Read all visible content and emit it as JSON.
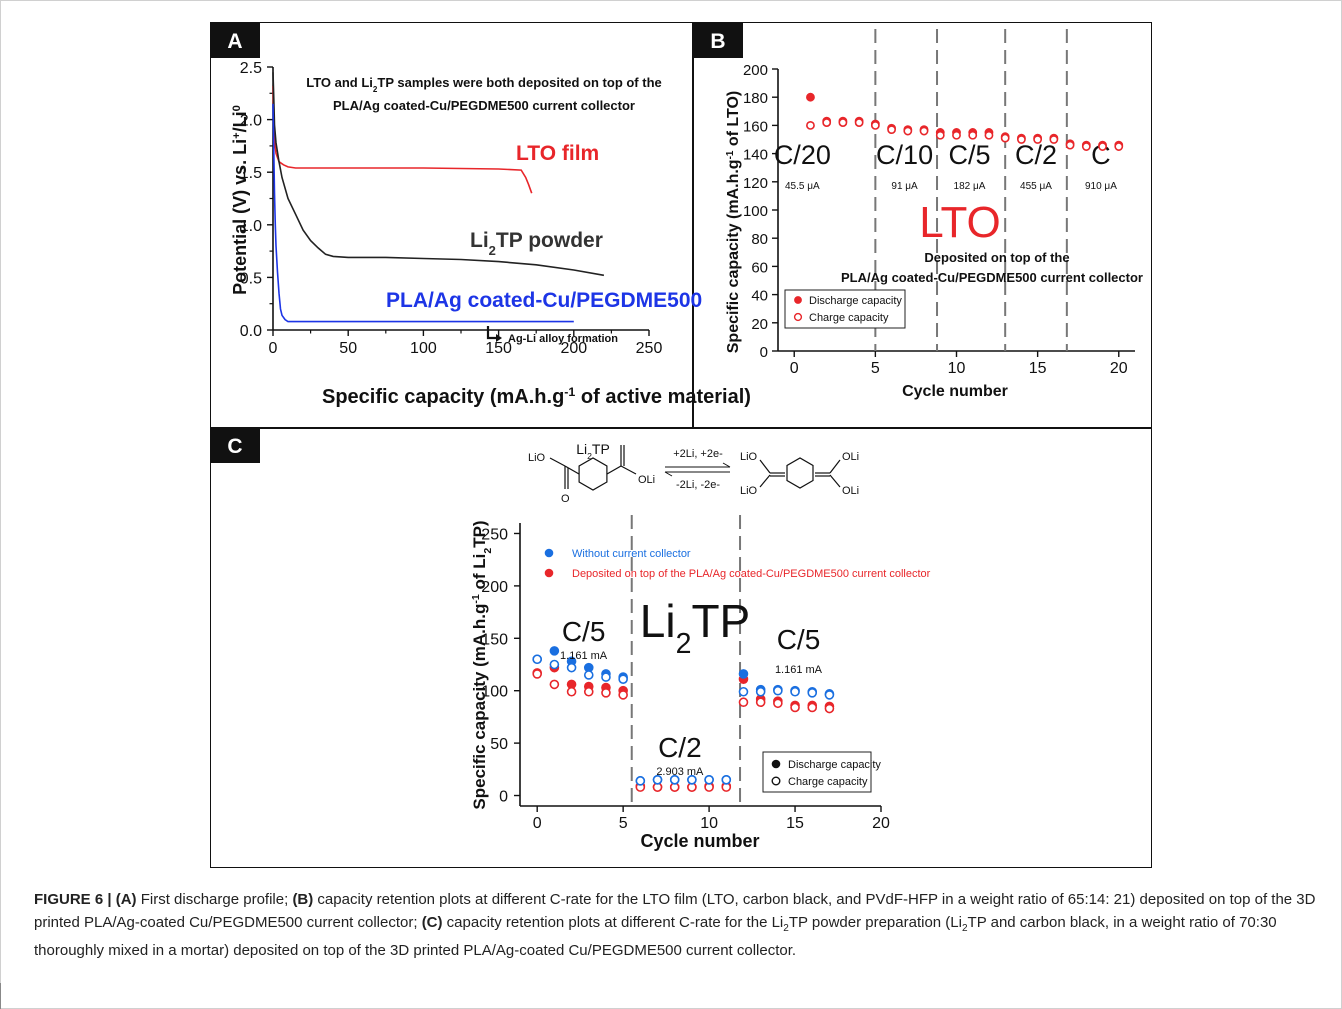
{
  "caption": {
    "figure_label": "FIGURE 6 |",
    "a_label": "(A)",
    "a_text": " First discharge profile; ",
    "b_label": "(B)",
    "b_text": " capacity retention plots at different C-rate for the LTO film (LTO, carbon black, and PVdF-HFP in a weight ratio of 65:14: 21) deposited on top of the 3D printed PLA/Ag-coated Cu/PEGDME500 current collector; ",
    "c_label": "(C)",
    "c_text_1": " capacity retention plots at different C-rate for the Li",
    "sub2": "2",
    "c_text_2": "TP powder preparation (Li",
    "c_text_3": "TP and carbon black, in a weight ratio of 70:30 thoroughly mixed in a mortar) deposited on top of the 3D printed PLA/Ag-coated Cu/PEGDME500 current collector."
  },
  "chart_data": [
    {
      "panel": "A",
      "type": "line",
      "xlabel": "Specific capacity (mA.h.g-1 of active material)",
      "ylabel": "Potential (V) vs. Li+/Li0",
      "xlim": [
        0,
        250
      ],
      "ylim": [
        0,
        2.5
      ],
      "xticks": [
        "0",
        "50",
        "100",
        "150",
        "200",
        "250"
      ],
      "yticks": [
        "0.0",
        "0.5",
        "1.0",
        "1.5",
        "2.0",
        "2.5"
      ],
      "annotation_1": "LTO and Li2TP samples were both deposited on top of the",
      "annotation_2": "PLA/Ag coated-Cu/PEGDME500 current collector",
      "annotation_3": "Ag-Li alloy formation",
      "series": [
        {
          "name": "LTO film",
          "color": "#e8262a",
          "x": [
            0,
            0.5,
            1,
            2,
            4,
            7,
            10,
            15,
            25,
            50,
            100,
            150,
            165,
            168,
            170,
            172
          ],
          "y": [
            2.32,
            2.0,
            1.8,
            1.68,
            1.6,
            1.57,
            1.55,
            1.54,
            1.54,
            1.54,
            1.54,
            1.53,
            1.52,
            1.45,
            1.38,
            1.3
          ]
        },
        {
          "name": "Li2TP powder",
          "color": "#222222",
          "x": [
            0,
            0.5,
            1,
            2,
            4,
            6,
            10,
            15,
            20,
            25,
            30,
            35,
            40,
            50,
            75,
            100,
            125,
            150,
            175,
            200,
            220
          ],
          "y": [
            2.45,
            2.2,
            1.95,
            1.78,
            1.6,
            1.45,
            1.25,
            1.1,
            0.95,
            0.85,
            0.78,
            0.72,
            0.7,
            0.69,
            0.69,
            0.68,
            0.67,
            0.65,
            0.62,
            0.57,
            0.52
          ]
        },
        {
          "name": "PLA/Ag coated-Cu/PEGDME500",
          "color": "#1d35e6",
          "x": [
            0,
            0.5,
            1,
            1.5,
            2,
            3,
            4,
            5,
            6,
            8,
            10,
            20,
            50,
            100,
            150,
            200
          ],
          "y": [
            2.15,
            1.7,
            1.3,
            1.0,
            0.8,
            0.55,
            0.35,
            0.2,
            0.14,
            0.1,
            0.08,
            0.08,
            0.08,
            0.08,
            0.08,
            0.08
          ]
        }
      ]
    },
    {
      "panel": "B",
      "type": "scatter",
      "xlabel": "Cycle number",
      "ylabel": "Specific capacity (mA.h.g-1 of LTO)",
      "xlim": [
        -1,
        21
      ],
      "ylim": [
        0,
        200
      ],
      "xticks": [
        "0",
        "5",
        "10",
        "15",
        "20"
      ],
      "yticks": [
        "0",
        "20",
        "40",
        "60",
        "80",
        "100",
        "120",
        "140",
        "160",
        "180",
        "200"
      ],
      "center_label": "LTO",
      "note_1": "Deposited on top of the",
      "note_2": "PLA/Ag coated-Cu/PEGDME500 current collector",
      "rates": [
        {
          "rate": "C/20",
          "current": "45.5 μA"
        },
        {
          "rate": "C/10",
          "current": "91 μA"
        },
        {
          "rate": "C/5",
          "current": "182 μA"
        },
        {
          "rate": "C/2",
          "current": "455 μA"
        },
        {
          "rate": "C",
          "current": "910 μA"
        }
      ],
      "dividers_x": [
        5,
        8.8,
        13,
        16.8
      ],
      "legend": [
        "Discharge capacity",
        "Charge capacity"
      ],
      "series": [
        {
          "name": "Discharge capacity",
          "color": "#e8262a",
          "filled": true,
          "x": [
            1,
            2,
            3,
            4,
            5,
            6,
            7,
            8,
            9,
            10,
            11,
            12,
            13,
            14,
            15,
            16,
            17,
            18,
            19,
            20
          ],
          "y": [
            180,
            163,
            163,
            163,
            161,
            158,
            157,
            157,
            155,
            155,
            155,
            155,
            152,
            151,
            151,
            151,
            147,
            146,
            146,
            146
          ]
        },
        {
          "name": "Charge capacity",
          "color": "#e8262a",
          "filled": false,
          "x": [
            1,
            2,
            3,
            4,
            5,
            6,
            7,
            8,
            9,
            10,
            11,
            12,
            13,
            14,
            15,
            16,
            17,
            18,
            19,
            20
          ],
          "y": [
            160,
            162,
            162,
            162,
            160,
            157,
            156,
            156,
            153,
            153,
            153,
            153,
            151,
            150,
            150,
            150,
            146,
            145,
            145,
            145
          ]
        }
      ]
    },
    {
      "panel": "C",
      "type": "scatter",
      "xlabel": "Cycle number",
      "ylabel": "Specific capacity (mA.h.g-1 of Li2TP)",
      "xlim": [
        -1,
        20
      ],
      "ylim": [
        -10,
        260
      ],
      "xticks": [
        "0",
        "5",
        "10",
        "15",
        "20"
      ],
      "yticks": [
        "0",
        "50",
        "100",
        "150",
        "200",
        "250"
      ],
      "center_label": "Li2TP",
      "rates": [
        {
          "rate": "C/5",
          "current": "1.161 mA"
        },
        {
          "rate": "C/2",
          "current": "2.903 mA"
        },
        {
          "rate": "C/5",
          "current": "1.161 mA"
        }
      ],
      "dividers_x": [
        5.5,
        11.8
      ],
      "legend_series": [
        "Without current collector",
        "Deposited on top of the PLA/Ag coated-Cu/PEGDME500 current collector"
      ],
      "legend_markers": [
        "Discharge capacity",
        "Charge capacity"
      ],
      "scheme": {
        "reactant": "Li2TP",
        "forward": "+2Li, +2e-",
        "reverse": "-2Li, -2e-"
      },
      "series": [
        {
          "name": "Without current collector - discharge",
          "color": "#1a6fe0",
          "filled": true,
          "x": [
            0,
            1,
            2,
            3,
            4,
            5,
            6,
            7,
            8,
            9,
            10,
            11,
            12,
            13,
            14,
            15,
            16,
            17
          ],
          "y": [
            130,
            138,
            128,
            122,
            116,
            113,
            14,
            15,
            15,
            15,
            15,
            15,
            116,
            101,
            101,
            100,
            99,
            97
          ]
        },
        {
          "name": "Without current collector - charge",
          "color": "#1a6fe0",
          "filled": false,
          "x": [
            0,
            1,
            2,
            3,
            4,
            5,
            6,
            7,
            8,
            9,
            10,
            11,
            12,
            13,
            14,
            15,
            16,
            17
          ],
          "y": [
            130,
            125,
            122,
            115,
            113,
            111,
            14,
            15,
            15,
            15,
            15,
            15,
            99,
            99,
            100,
            99,
            98,
            96
          ]
        },
        {
          "name": "Deposited - discharge",
          "color": "#e8262a",
          "filled": true,
          "x": [
            0,
            1,
            2,
            3,
            4,
            5,
            6,
            7,
            8,
            9,
            10,
            11,
            12,
            13,
            14,
            15,
            16,
            17
          ],
          "y": [
            117,
            122,
            106,
            104,
            103,
            100,
            9,
            8,
            8,
            8,
            9,
            9,
            111,
            92,
            90,
            86,
            86,
            85
          ]
        },
        {
          "name": "Deposited - charge",
          "color": "#e8262a",
          "filled": false,
          "x": [
            0,
            1,
            2,
            3,
            4,
            5,
            6,
            7,
            8,
            9,
            10,
            11,
            12,
            13,
            14,
            15,
            16,
            17
          ],
          "y": [
            116,
            106,
            99,
            99,
            98,
            96,
            8,
            8,
            8,
            8,
            8,
            8,
            89,
            89,
            88,
            84,
            84,
            83
          ]
        }
      ]
    }
  ]
}
